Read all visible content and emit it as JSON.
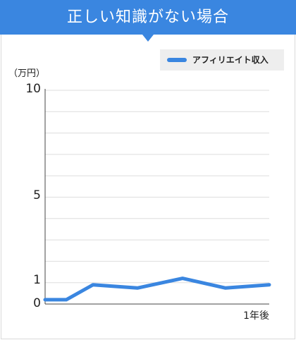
{
  "header": {
    "title": "正しい知識がない場合"
  },
  "chart_data": {
    "type": "line",
    "title": "正しい知識がない場合",
    "ylabel": "（万円）",
    "ylim": [
      0,
      10
    ],
    "y_ticks": [
      "10",
      "5",
      "1",
      "0"
    ],
    "x_ticks": [
      "1年後"
    ],
    "grid": true,
    "legend": "top-right",
    "series": [
      {
        "name": "アフィリエイト収入",
        "color": "#3a86e0",
        "values": [
          0.2,
          0.2,
          0.9,
          0.75,
          1.2,
          0.75,
          0.9
        ]
      }
    ]
  }
}
